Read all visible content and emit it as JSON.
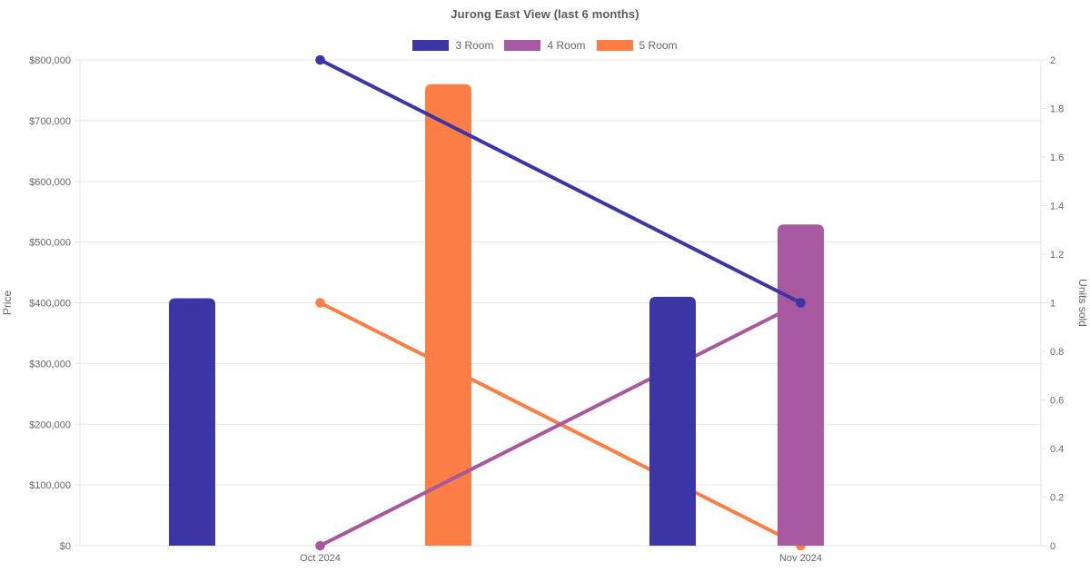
{
  "title": "Jurong East View (last 6 months)",
  "legend": {
    "position": "top center",
    "items": [
      {
        "label": "3 Room",
        "color": "#3b35a5"
      },
      {
        "label": "4 Room",
        "color": "#a8589f"
      },
      {
        "label": "5 Room",
        "color": "#fd7e44"
      }
    ]
  },
  "chart_data": {
    "type": "combo bar+line, dual y-axis",
    "title": "Jurong East View (last 6 months)",
    "categories": [
      "Oct 2024",
      "Nov 2024"
    ],
    "bar_series": [
      {
        "name": "3 Room",
        "axis": "left",
        "color": "#3b35a5",
        "values": [
          407500,
          410000
        ]
      },
      {
        "name": "4 Room",
        "axis": "left",
        "color": "#a8589f",
        "values": [
          null,
          529000
        ]
      },
      {
        "name": "5 Room",
        "axis": "left",
        "color": "#fd7e44",
        "values": [
          760000,
          null
        ]
      }
    ],
    "line_series": [
      {
        "name": "3 Room",
        "axis": "right",
        "color": "#3b35a5",
        "values": [
          2,
          1
        ]
      },
      {
        "name": "4 Room",
        "axis": "right",
        "color": "#a8589f",
        "values": [
          0,
          1
        ]
      },
      {
        "name": "5 Room",
        "axis": "right",
        "color": "#fd7e44",
        "values": [
          1,
          0
        ]
      }
    ],
    "left_axis": {
      "label": "Price",
      "min": 0,
      "max": 800000,
      "tick_step": 100000,
      "tick_prefix": "$"
    },
    "right_axis": {
      "label": "Units sold",
      "min": 0,
      "max": 2,
      "tick_step": 0.2
    },
    "grid": "horizontal gridlines at left-axis ticks only",
    "legend_position": "top",
    "style_colors": {
      "grid": "#e5e5e5",
      "tick_text": "#666666",
      "title_text": "#555a60"
    }
  }
}
